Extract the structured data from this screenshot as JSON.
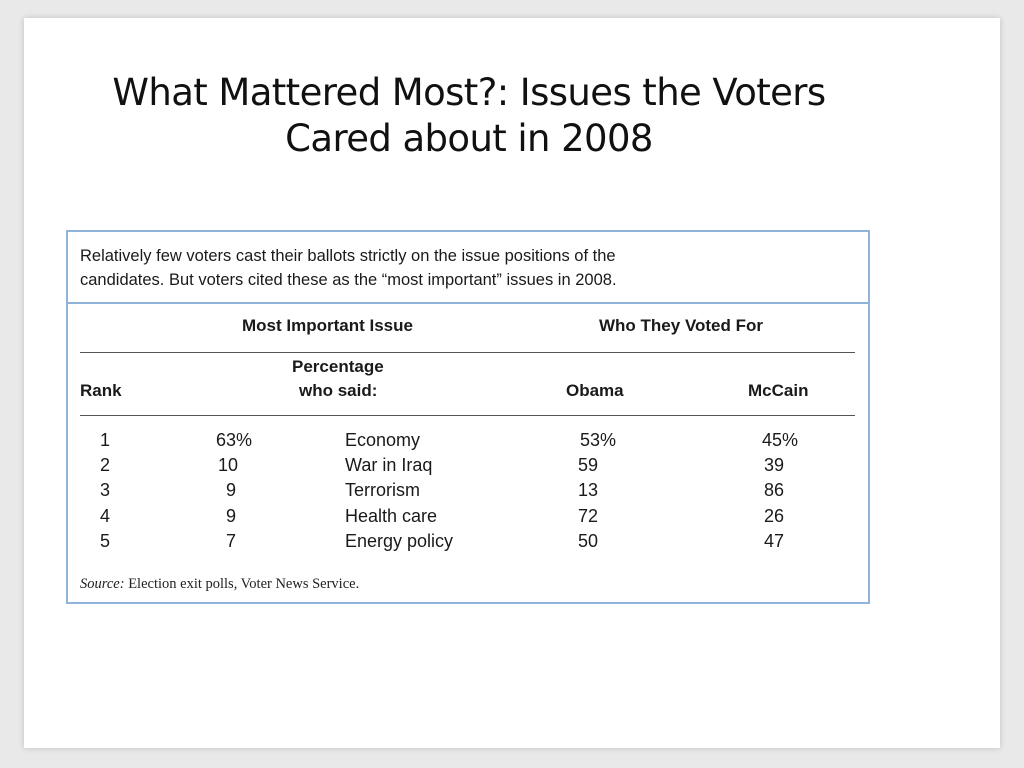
{
  "slide": {
    "title_line1": "What Mattered Most?: Issues the Voters",
    "title_line2": "Cared about in 2008"
  },
  "table": {
    "intro_line1": "Relatively few voters cast their ballots strictly on the issue positions of the",
    "intro_line2": "candidates. But voters cited these as the “most important” issues in 2008.",
    "group_headers": {
      "issue": "Most Important Issue",
      "voted": "Who They Voted For"
    },
    "column_headers": {
      "rank": "Rank",
      "pct_line1": "Percentage",
      "pct_line2": "who said:",
      "obama": "Obama",
      "mccain": "McCain"
    },
    "rows": [
      {
        "rank": "1",
        "pct": "63%",
        "issue": "Economy",
        "obama": "53%",
        "mccain": "45%"
      },
      {
        "rank": "2",
        "pct": "10",
        "issue": "War in Iraq",
        "obama": "59",
        "mccain": "39"
      },
      {
        "rank": "3",
        "pct": "9",
        "issue": "Terrorism",
        "obama": "13",
        "mccain": "86"
      },
      {
        "rank": "4",
        "pct": "9",
        "issue": "Health care",
        "obama": "72",
        "mccain": "26"
      },
      {
        "rank": "5",
        "pct": "7",
        "issue": "Energy policy",
        "obama": "50",
        "mccain": "47"
      }
    ],
    "source_label": "Source:",
    "source_text": "Election exit polls, Voter News Service."
  },
  "colors": {
    "border": "#8fb3d9",
    "text": "#1a1a1a",
    "background": "#ffffff"
  }
}
